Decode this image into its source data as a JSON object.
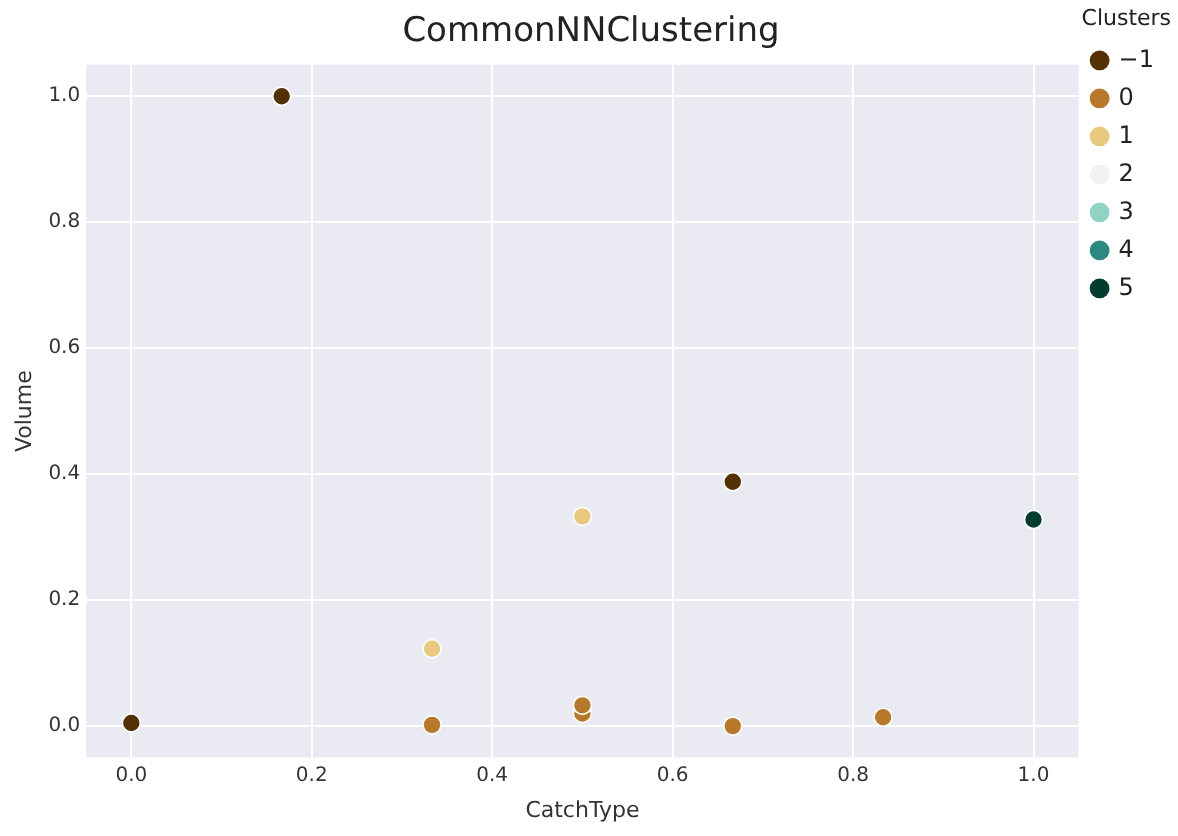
{
  "chart_data": {
    "type": "scatter",
    "title": "CommonNNClustering",
    "xlabel": "CatchType",
    "ylabel": "Volume",
    "legend_title": "Clusters",
    "legend": "right",
    "grid": true,
    "marker": "circle",
    "xlim": [
      -0.05,
      1.05
    ],
    "xticks": [
      {
        "value": 0,
        "label": "0.0"
      },
      {
        "value": 0.2,
        "label": "0.2"
      },
      {
        "value": 0.4,
        "label": "0.4"
      },
      {
        "value": 0.6,
        "label": "0.6"
      },
      {
        "value": 0.8,
        "label": "0.8"
      },
      {
        "value": 1,
        "label": "1.0"
      }
    ],
    "ylim": [
      -0.05,
      1.05
    ],
    "yticks": [
      {
        "value": 0,
        "label": "0.0"
      },
      {
        "value": 0.2,
        "label": "0.2"
      },
      {
        "value": 0.4,
        "label": "0.4"
      },
      {
        "value": 0.6,
        "label": "0.6"
      },
      {
        "value": 0.8,
        "label": "0.8"
      },
      {
        "value": 1,
        "label": "1.0"
      }
    ],
    "series": [
      {
        "name": "−1",
        "color": "#543005",
        "x": [
          0,
          0.1667,
          0.6667
        ],
        "values": [
          0.005,
          1.0,
          0.388
        ]
      },
      {
        "name": "0",
        "color": "#b8782a",
        "x": [
          0.3333,
          0.5,
          0.5,
          0.6667,
          0.8333
        ],
        "values": [
          0.002,
          0.02,
          0.033,
          0.0,
          0.014
        ]
      },
      {
        "name": "1",
        "color": "#e8c97d",
        "x": [
          0.3333,
          0.5
        ],
        "values": [
          0.123,
          0.333
        ]
      },
      {
        "name": "2",
        "color": "#f2f2f0"
      },
      {
        "name": "3",
        "color": "#8fd4c3"
      },
      {
        "name": "4",
        "color": "#2a8a80"
      },
      {
        "name": "5",
        "color": "#003c30",
        "x": [
          1.0
        ],
        "values": [
          0.328
        ]
      }
    ]
  }
}
